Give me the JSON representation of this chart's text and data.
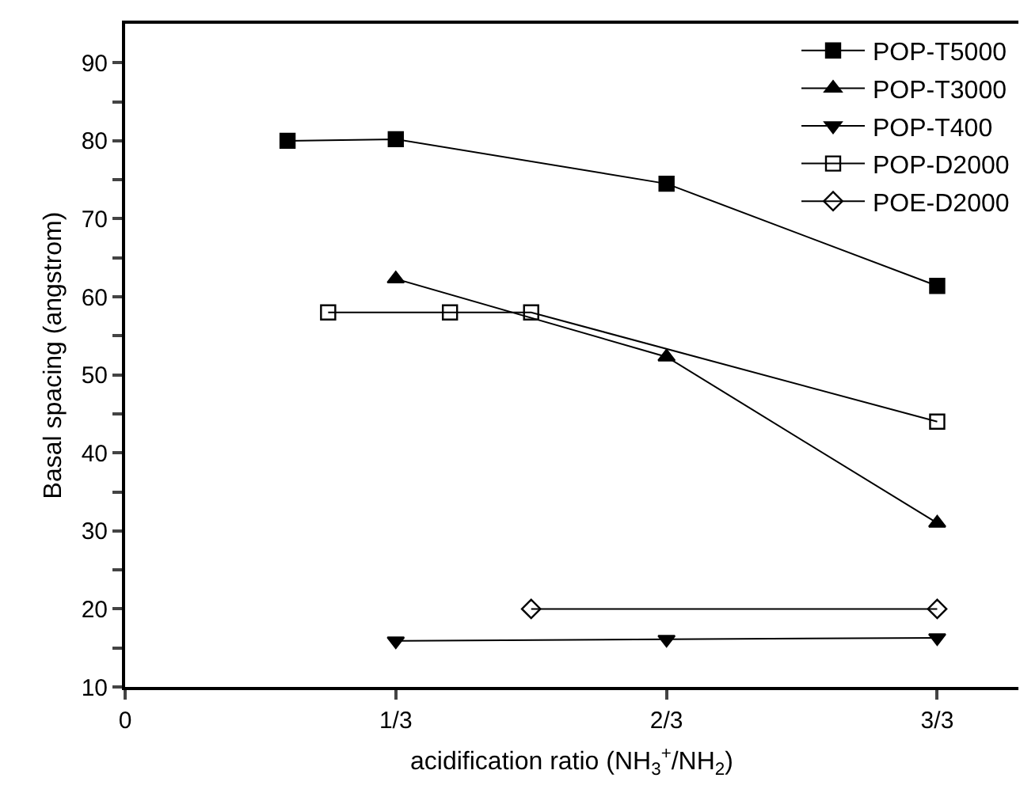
{
  "chart_data": {
    "type": "line",
    "xlabel": "acidification ratio (NH$_{3}$$^{+}$/NH$_{2}$)",
    "ylabel": "Basal spacing (angstrom)",
    "xlim": [
      0,
      1.1
    ],
    "xticks": [
      {
        "value": 0,
        "label": "0"
      },
      {
        "value": 0.3333,
        "label": "1/3"
      },
      {
        "value": 0.6667,
        "label": "2/3"
      },
      {
        "value": 1,
        "label": "3/3"
      }
    ],
    "ylim": [
      10,
      95
    ],
    "yticks": [
      10,
      {
        "value": 15,
        "label": null
      },
      20,
      {
        "value": 25,
        "label": null
      },
      30,
      {
        "value": 35,
        "label": null
      },
      40,
      {
        "value": 45,
        "label": null
      },
      50,
      {
        "value": 55,
        "label": null
      },
      60,
      {
        "value": 65,
        "label": null
      },
      70,
      {
        "value": 75,
        "label": null
      },
      80,
      {
        "value": 85,
        "label": null
      },
      90
    ],
    "legend": "top right",
    "line_style": "solid",
    "series": [
      {
        "name": "POP-T5000",
        "color": "#000000",
        "marker": "square",
        "x": [
          0.2,
          0.3333,
          0.6667,
          1
        ],
        "values": [
          80.0,
          80.2,
          74.5,
          61.4
        ]
      },
      {
        "name": "POP-T3000",
        "color": "#000000",
        "marker": "triangle",
        "x": [
          0.3333,
          0.6667,
          1
        ],
        "values": [
          62.3,
          52.3,
          31.0
        ]
      },
      {
        "name": "POP-T400",
        "color": "#000000",
        "marker": "triangle-down",
        "x": [
          0.3333,
          0.6667,
          1
        ],
        "values": [
          15.9,
          16.1,
          16.3
        ]
      },
      {
        "name": "POP-D2000",
        "color": "#000000",
        "marker": "square-open",
        "x": [
          0.25,
          0.4,
          0.5,
          1
        ],
        "values": [
          58.0,
          58.0,
          58.0,
          44.0
        ]
      },
      {
        "name": "POE-D2000",
        "color": "#000000",
        "marker": "diamond-open",
        "x": [
          0.5,
          1
        ],
        "values": [
          20.0,
          20.0
        ]
      }
    ]
  }
}
